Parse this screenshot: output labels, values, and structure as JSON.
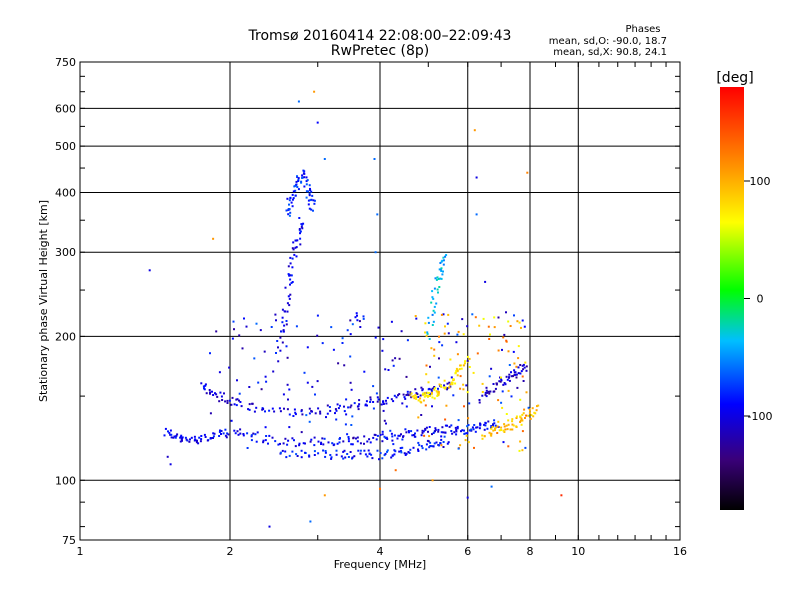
{
  "chart_data": {
    "type": "scatter",
    "title": "Tromsø 20160414 22:08:00–22:09:43",
    "subtitle": "RwPretec (8p)",
    "xlabel": "Frequency [MHz]",
    "ylabel": "Stationary phase Virtual Height [km]",
    "x_scale": "log",
    "y_scale": "log",
    "xlim": [
      1,
      16
    ],
    "ylim": [
      75,
      750
    ],
    "x_ticks": [
      1,
      2,
      4,
      6,
      8,
      10,
      16
    ],
    "x_tick_labels": [
      "1",
      "2",
      "4",
      "6",
      "8",
      "10",
      "16"
    ],
    "y_ticks": [
      75,
      100,
      200,
      300,
      400,
      500,
      600,
      750
    ],
    "y_tick_labels": [
      "75",
      "100",
      "200",
      "300",
      "400",
      "500",
      "600",
      "750"
    ],
    "grid": true,
    "phases_box": {
      "title": "Phases",
      "line_o": "mean, sd,O: -90.0, 18.7",
      "line_x": "mean, sd,X:  90.8, 24.1"
    },
    "colorbar": {
      "label": "[deg]",
      "range": [
        -180,
        180
      ],
      "ticks": [
        100,
        0,
        -100
      ],
      "tick_labels": [
        "100",
        "0",
        "-100"
      ]
    },
    "traces": [
      {
        "x": [
          1.48,
          1.55,
          1.62,
          1.7,
          1.8,
          1.9,
          2.0,
          2.2,
          2.4,
          2.7,
          3.0,
          3.3,
          3.6,
          3.9,
          4.2,
          4.5,
          4.8,
          5.1,
          5.4,
          5.7,
          6.0,
          6.3,
          6.6,
          6.9
        ],
        "y": [
          127,
          123,
          121,
          122,
          123,
          124,
          126,
          124,
          121,
          120,
          120,
          120,
          121,
          122,
          123,
          125,
          126,
          127,
          128,
          127,
          128,
          129,
          130,
          131
        ],
        "phase": -95
      },
      {
        "x": [
          1.75,
          1.85,
          1.95,
          2.1,
          2.3,
          2.6,
          2.9,
          3.2,
          3.5,
          3.8,
          4.1,
          4.4,
          4.7,
          5.0,
          5.3,
          5.6
        ],
        "y": [
          158,
          152,
          148,
          144,
          141,
          139,
          139,
          141,
          143,
          145,
          147,
          150,
          152,
          154,
          157,
          160
        ],
        "phase": -100
      },
      {
        "x": [
          2.5,
          2.8,
          3.1,
          3.4,
          3.7,
          4.0,
          4.3,
          4.6,
          4.9,
          5.2,
          5.5
        ],
        "y": [
          113,
          113,
          113,
          113,
          113,
          113,
          114,
          116,
          118,
          120,
          122
        ],
        "phase": -85
      },
      {
        "x": [
          2.6,
          2.65,
          2.7,
          2.75,
          2.8,
          2.85,
          2.9,
          2.95
        ],
        "y": [
          360,
          380,
          400,
          420,
          440,
          410,
          390,
          370
        ],
        "phase": -80
      },
      {
        "x": [
          2.5,
          2.55,
          2.6,
          2.65,
          2.7,
          2.75,
          2.8
        ],
        "y": [
          180,
          210,
          240,
          270,
          300,
          330,
          350
        ],
        "phase": -95
      },
      {
        "x": [
          4.6,
          4.8,
          5.0,
          5.2,
          5.4,
          5.6,
          5.8,
          6.0
        ],
        "y": [
          150,
          148,
          150,
          153,
          157,
          162,
          170,
          180
        ],
        "phase": 80
      },
      {
        "x": [
          6.5,
          6.8,
          7.1,
          7.4,
          7.7,
          8.0,
          8.3
        ],
        "y": [
          126,
          127,
          129,
          131,
          134,
          138,
          142
        ],
        "phase": 90
      },
      {
        "x": [
          6.4,
          6.7,
          7.0,
          7.3,
          7.6,
          7.9
        ],
        "y": [
          150,
          155,
          160,
          165,
          170,
          175
        ],
        "phase": -110
      },
      {
        "x": [
          5.0,
          5.1,
          5.2,
          5.3,
          5.4
        ],
        "y": [
          200,
          230,
          260,
          280,
          300
        ],
        "phase": -40
      }
    ],
    "points": [
      {
        "x": 1.38,
        "y": 275,
        "phase": -100
      },
      {
        "x": 1.85,
        "y": 320,
        "phase": 110
      },
      {
        "x": 2.75,
        "y": 620,
        "phase": -60
      },
      {
        "x": 2.95,
        "y": 650,
        "phase": 110
      },
      {
        "x": 3.1,
        "y": 470,
        "phase": -60
      },
      {
        "x": 3.0,
        "y": 560,
        "phase": -90
      },
      {
        "x": 3.9,
        "y": 470,
        "phase": -60
      },
      {
        "x": 3.95,
        "y": 360,
        "phase": -60
      },
      {
        "x": 3.92,
        "y": 300,
        "phase": -60
      },
      {
        "x": 6.2,
        "y": 540,
        "phase": 110
      },
      {
        "x": 6.25,
        "y": 430,
        "phase": -100
      },
      {
        "x": 6.25,
        "y": 360,
        "phase": -60
      },
      {
        "x": 6.5,
        "y": 260,
        "phase": -100
      },
      {
        "x": 7.9,
        "y": 440,
        "phase": 120
      },
      {
        "x": 9.25,
        "y": 93,
        "phase": 160
      },
      {
        "x": 6.7,
        "y": 97,
        "phase": -60
      },
      {
        "x": 6.0,
        "y": 92,
        "phase": -100
      },
      {
        "x": 4.0,
        "y": 96,
        "phase": 130
      },
      {
        "x": 3.1,
        "y": 93,
        "phase": 110
      },
      {
        "x": 2.9,
        "y": 82,
        "phase": -60
      },
      {
        "x": 2.4,
        "y": 80,
        "phase": -100
      },
      {
        "x": 1.52,
        "y": 108,
        "phase": -100
      },
      {
        "x": 1.5,
        "y": 112,
        "phase": -110
      },
      {
        "x": 4.3,
        "y": 105,
        "phase": 130
      },
      {
        "x": 5.1,
        "y": 100,
        "phase": 110
      }
    ]
  }
}
